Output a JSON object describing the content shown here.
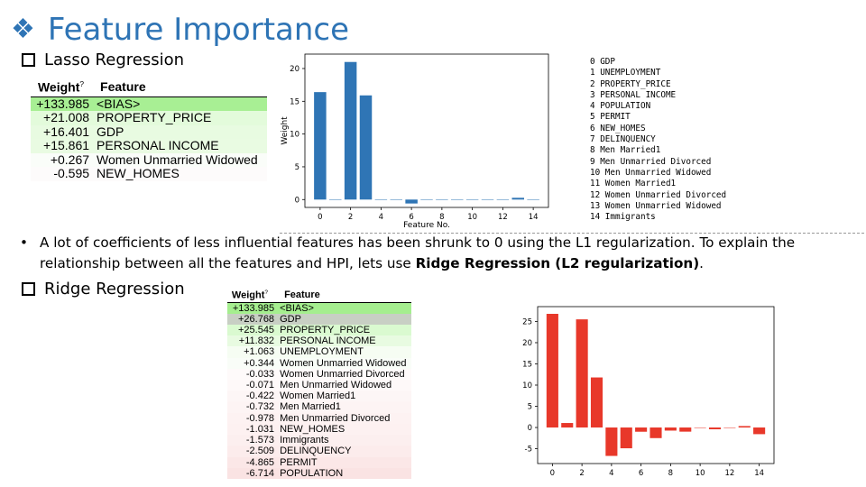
{
  "title": "Feature Importance",
  "sections": {
    "lasso": "Lasso Regression",
    "ridge": "Ridge Regression"
  },
  "table_headers": {
    "weight": "Weight",
    "weight_help": "?",
    "feature": "Feature"
  },
  "lasso_table": [
    {
      "weight": "+133.985",
      "feature": "<BIAS>",
      "color": "#a8ef94"
    },
    {
      "weight": "+21.008",
      "feature": "PROPERTY_PRICE",
      "color": "#e3fbdb"
    },
    {
      "weight": "+16.401",
      "feature": "GDP",
      "color": "#e8fbe1"
    },
    {
      "weight": "+15.861",
      "feature": "PERSONAL INCOME",
      "color": "#e9fbe2"
    },
    {
      "weight": "+0.267",
      "feature": "Women Unmarried Widowed",
      "color": "#fafdf9"
    },
    {
      "weight": "-0.595",
      "feature": "NEW_HOMES",
      "color": "#fdfbfb"
    }
  ],
  "ridge_table": [
    {
      "weight": "+133.985",
      "feature": "<BIAS>",
      "color": "#a5ee8f"
    },
    {
      "weight": "+26.768",
      "feature": "GDP",
      "color": "#c8cfc4"
    },
    {
      "weight": "+25.545",
      "feature": "PROPERTY_PRICE",
      "color": "#dafad0"
    },
    {
      "weight": "+11.832",
      "feature": "PERSONAL INCOME",
      "color": "#e8fbe1"
    },
    {
      "weight": "+1.063",
      "feature": "UNEMPLOYMENT",
      "color": "#f6fdf3"
    },
    {
      "weight": "+0.344",
      "feature": "Women Unmarried Widowed",
      "color": "#f9fdf8"
    },
    {
      "weight": "-0.033",
      "feature": "Women Unmarried Divorced",
      "color": "#fefafa"
    },
    {
      "weight": "-0.071",
      "feature": "Men Unmarried Widowed",
      "color": "#fef9f9"
    },
    {
      "weight": "-0.422",
      "feature": "Women Married1",
      "color": "#fdf6f6"
    },
    {
      "weight": "-0.732",
      "feature": "Men Married1",
      "color": "#fdf4f4"
    },
    {
      "weight": "-0.978",
      "feature": "Men Unmarried Divorced",
      "color": "#fdf2f2"
    },
    {
      "weight": "-1.031",
      "feature": "NEW_HOMES",
      "color": "#fdf1f1"
    },
    {
      "weight": "-1.573",
      "feature": "Immigrants",
      "color": "#fcefef"
    },
    {
      "weight": "-2.509",
      "feature": "DELINQUENCY",
      "color": "#fcecec"
    },
    {
      "weight": "-4.865",
      "feature": "PERMIT",
      "color": "#fbe7e7"
    },
    {
      "weight": "-6.714",
      "feature": "POPULATION",
      "color": "#fae3e3"
    }
  ],
  "feature_legend": [
    "0 GDP",
    "1 UNEMPLOYMENT",
    "2 PROPERTY_PRICE",
    "3 PERSONAL INCOME",
    "4 POPULATION",
    "5 PERMIT",
    "6 NEW_HOMES",
    "7 DELINQUENCY",
    "8 Men Married1",
    "9 Men Unmarried Divorced",
    "10 Men Unmarried Widowed",
    "11 Women Married1",
    "12 Women Unmarried Divorced",
    "13 Women Unmarried Widowed",
    "14 Immigrants"
  ],
  "bullet": {
    "text_before": "A lot of coefficients of less influential features has been shrunk to 0 using the L1 regularization. To explain the relationship between all the features and HPI, lets use ",
    "bold": "Ridge Regression (L2 regularization)",
    "text_after": "."
  },
  "colors": {
    "accent": "#2e74b5",
    "lasso_bar": "#2f75b5",
    "ridge_bar": "#e8382a"
  },
  "chart_data": [
    {
      "type": "bar",
      "title": "",
      "xlabel": "Feature No.",
      "ylabel": "Weight",
      "x": [
        0,
        1,
        2,
        3,
        4,
        5,
        6,
        7,
        8,
        9,
        10,
        11,
        12,
        13,
        14
      ],
      "values": [
        16.4,
        0,
        21.0,
        15.9,
        0,
        0,
        -0.6,
        0,
        0,
        0,
        0,
        0,
        0,
        0.27,
        0
      ],
      "xlim": [
        -1,
        15
      ],
      "ylim": [
        -1.2,
        22.2
      ],
      "xticks": [
        "0",
        "2",
        "4",
        "6",
        "8",
        "10",
        "12",
        "14"
      ],
      "yticks": [
        "0",
        "5",
        "10",
        "15",
        "20"
      ],
      "color": "#2f75b5",
      "grid": false
    },
    {
      "type": "bar",
      "title": "",
      "xlabel": "",
      "ylabel": "",
      "x": [
        0,
        1,
        2,
        3,
        4,
        5,
        6,
        7,
        8,
        9,
        10,
        11,
        12,
        13,
        14
      ],
      "values": [
        26.8,
        1.06,
        25.5,
        11.8,
        -6.7,
        -4.9,
        -1.0,
        -2.5,
        -0.73,
        -0.98,
        -0.07,
        -0.42,
        -0.03,
        0.34,
        -1.57
      ],
      "xlim": [
        -1,
        15
      ],
      "ylim": [
        -8.5,
        28.5
      ],
      "xticks": [
        "0",
        "2",
        "4",
        "6",
        "8",
        "10",
        "12",
        "14"
      ],
      "yticks": [
        "-5",
        "0",
        "5",
        "10",
        "15",
        "20",
        "25"
      ],
      "color": "#e8382a",
      "grid": false
    }
  ]
}
